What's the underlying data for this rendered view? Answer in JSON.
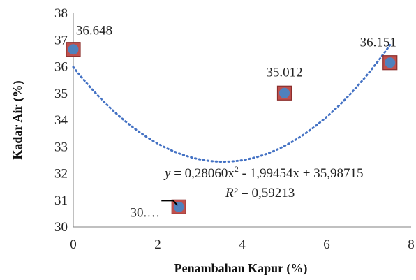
{
  "chart_data": {
    "type": "scatter",
    "xlabel": "Penambahan Kapur (%)",
    "ylabel": "Kadar Air  (%)",
    "xlim": [
      0,
      8
    ],
    "ylim": [
      30,
      38
    ],
    "x_ticks": [
      "0",
      "2",
      "4",
      "6",
      "8"
    ],
    "y_ticks": [
      "30",
      "31",
      "32",
      "33",
      "34",
      "35",
      "36",
      "37",
      "38"
    ],
    "points": [
      {
        "x": 0,
        "y": 36.648,
        "label": "36.648"
      },
      {
        "x": 2.5,
        "y": 30.75,
        "label": "30.…"
      },
      {
        "x": 5,
        "y": 35.012,
        "label": "35.012"
      },
      {
        "x": 7.5,
        "y": 36.151,
        "label": "36.151"
      }
    ],
    "trendline": {
      "type": "polynomial",
      "order": 2,
      "coefficients": [
        0.2806,
        -1.99454,
        35.98715
      ],
      "style": "dotted",
      "color": "#4472C4",
      "equation_parts": {
        "y": "y",
        "eq_a": " = 0,28060x",
        "sup": "2",
        "eq_b": " - 1,99454x + 35,98715"
      },
      "r2_parts": {
        "r": "R²",
        "val": " = 0,59213"
      }
    },
    "colors": {
      "marker_fill": "#4F81BD",
      "marker_border": "#C0504D",
      "marker_bg": "#C0504D",
      "axis": "#808080"
    },
    "grid": false,
    "legend": "none"
  }
}
